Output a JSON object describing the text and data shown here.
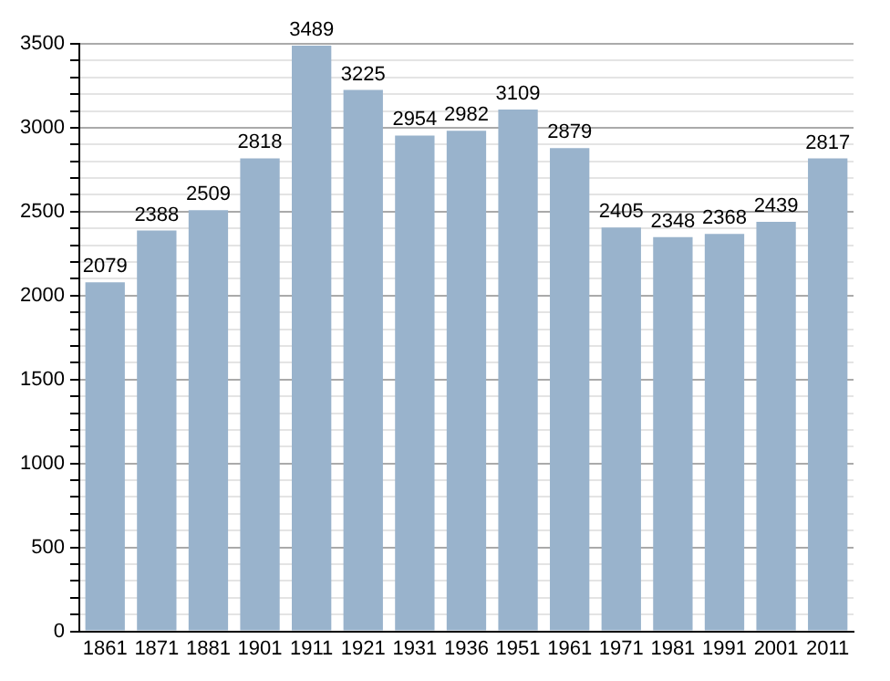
{
  "chart_data": {
    "type": "bar",
    "categories": [
      "1861",
      "1871",
      "1881",
      "1901",
      "1911",
      "1921",
      "1931",
      "1936",
      "1951",
      "1961",
      "1971",
      "1981",
      "1991",
      "2001",
      "2011"
    ],
    "values": [
      2079,
      2388,
      2509,
      2818,
      3489,
      3225,
      2954,
      2982,
      3109,
      2879,
      2405,
      2348,
      2368,
      2439,
      2817
    ],
    "color": "#99b3cc",
    "data_labels": true,
    "grid": "y",
    "ylim": [
      0,
      3500
    ],
    "yticks": [
      0,
      {
        "value": 100,
        "label": null
      },
      {
        "value": 200,
        "label": null
      },
      {
        "value": 300,
        "label": null
      },
      {
        "value": 400,
        "label": null
      },
      500,
      {
        "value": 600,
        "label": null
      },
      {
        "value": 700,
        "label": null
      },
      {
        "value": 800,
        "label": null
      },
      {
        "value": 900,
        "label": null
      },
      1000,
      {
        "value": 1100,
        "label": null
      },
      {
        "value": 1200,
        "label": null
      },
      {
        "value": 1300,
        "label": null
      },
      {
        "value": 1400,
        "label": null
      },
      1500,
      {
        "value": 1600,
        "label": null
      },
      {
        "value": 1700,
        "label": null
      },
      {
        "value": 1800,
        "label": null
      },
      {
        "value": 1900,
        "label": null
      },
      2000,
      {
        "value": 2100,
        "label": null
      },
      {
        "value": 2200,
        "label": null
      },
      {
        "value": 2300,
        "label": null
      },
      {
        "value": 2400,
        "label": null
      },
      2500,
      {
        "value": 2600,
        "label": null
      },
      {
        "value": 2700,
        "label": null
      },
      {
        "value": 2800,
        "label": null
      },
      {
        "value": 2900,
        "label": null
      },
      3000,
      {
        "value": 3100,
        "label": null
      },
      {
        "value": 3200,
        "label": null
      },
      {
        "value": 3300,
        "label": null
      },
      {
        "value": 3400,
        "label": null
      },
      3500
    ]
  }
}
